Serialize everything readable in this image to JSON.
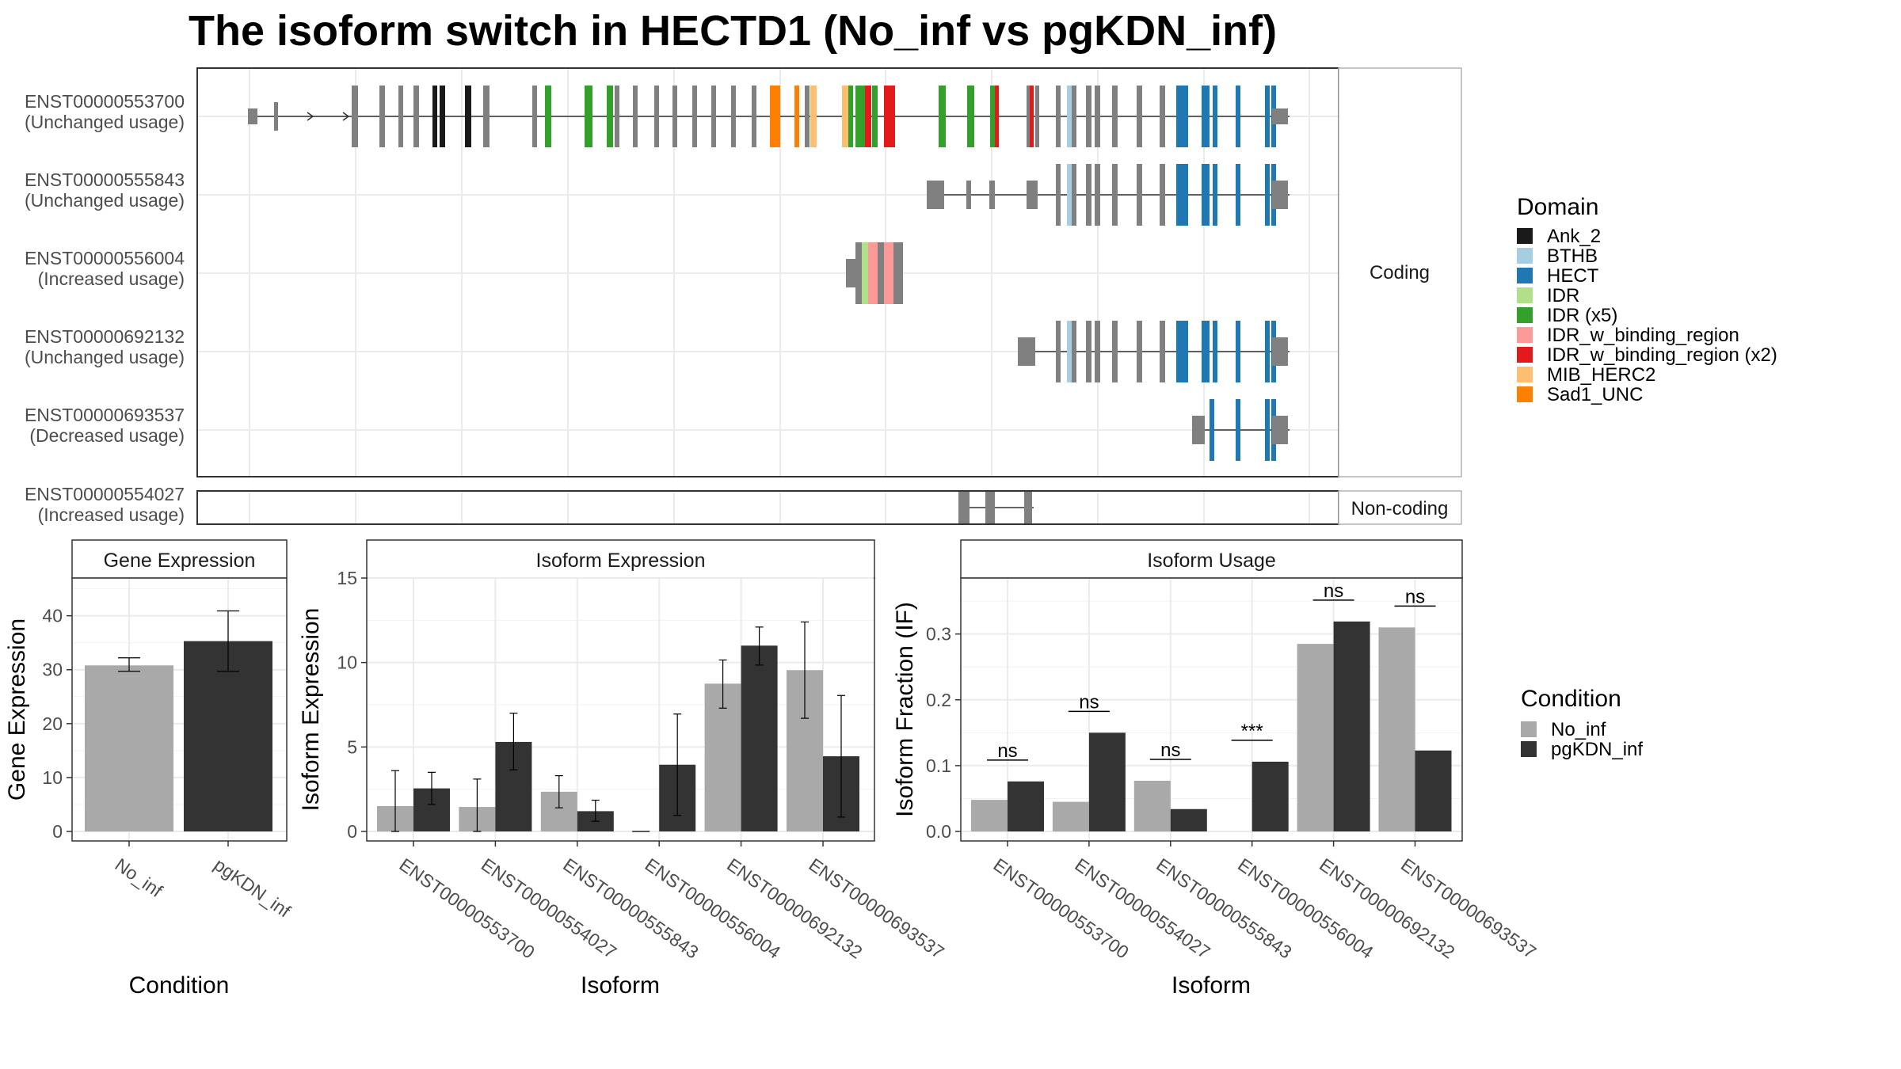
{
  "title": "The isoform switch in HECTD1 (No_inf vs pgKDN_inf)",
  "colors": {
    "Ank_2": "#1a1a1a",
    "BTHB": "#a6cee3",
    "HECT": "#1f78b4",
    "IDR": "#b2df8a",
    "IDR (x5)": "#33a02c",
    "IDR_w_binding_region": "#fb9a99",
    "IDR_w_binding_region (x2)": "#e31a1c",
    "MIB_HERC2": "#fdbf6f",
    "Sad1_UNC": "#ff7f00",
    "exon": "#808080",
    "No_inf": "#a9a9a9",
    "pgKDN_inf": "#333333"
  },
  "gene_structure": {
    "coding_strip": "Coding",
    "noncoding_strip": "Non-coding",
    "transcripts": [
      {
        "id": "ENST00000553700",
        "usage": "(Unchanged usage)"
      },
      {
        "id": "ENST00000555843",
        "usage": "(Unchanged usage)"
      },
      {
        "id": "ENST00000556004",
        "usage": "(Increased usage)"
      },
      {
        "id": "ENST00000692132",
        "usage": "(Unchanged usage)"
      },
      {
        "id": "ENST00000693537",
        "usage": "(Decreased usage)"
      },
      {
        "id": "ENST00000554027",
        "usage": "(Increased usage)"
      }
    ]
  },
  "domain_legend": {
    "title": "Domain",
    "items": [
      "Ank_2",
      "BTHB",
      "HECT",
      "IDR",
      "IDR (x5)",
      "IDR_w_binding_region",
      "IDR_w_binding_region (x2)",
      "MIB_HERC2",
      "Sad1_UNC"
    ]
  },
  "condition_legend": {
    "title": "Condition",
    "items": [
      "No_inf",
      "pgKDN_inf"
    ]
  },
  "chart_data": [
    {
      "type": "bar",
      "title": "Gene Expression",
      "xlabel": "Condition",
      "ylabel": "Gene Expression",
      "categories": [
        "No_inf",
        "pgKDN_inf"
      ],
      "values": [
        30.8,
        35.3
      ],
      "error_low": [
        29.7,
        29.7
      ],
      "error_high": [
        32.2,
        40.9
      ],
      "ylim": [
        0,
        47
      ],
      "yticks": [
        0,
        10,
        20,
        30,
        40
      ]
    },
    {
      "type": "bar",
      "title": "Isoform Expression",
      "xlabel": "Isoform",
      "ylabel": "Isoform Expression",
      "categories": [
        "ENST00000553700",
        "ENST00000554027",
        "ENST00000555843",
        "ENST00000556004",
        "ENST00000692132",
        "ENST00000693537"
      ],
      "series": [
        {
          "name": "No_inf",
          "values": [
            1.5,
            1.45,
            2.35,
            0.0,
            8.75,
            9.55
          ],
          "error_low": [
            0.0,
            0.0,
            1.4,
            0.0,
            7.3,
            6.7
          ],
          "error_high": [
            3.6,
            3.1,
            3.3,
            0.0,
            10.15,
            12.4
          ]
        },
        {
          "name": "pgKDN_inf",
          "values": [
            2.55,
            5.3,
            1.2,
            3.95,
            11.0,
            4.45
          ],
          "error_low": [
            1.6,
            3.65,
            0.6,
            0.95,
            9.85,
            0.85
          ],
          "error_high": [
            3.5,
            7.0,
            1.85,
            6.95,
            12.1,
            8.05
          ]
        }
      ],
      "ylim": [
        0,
        15
      ],
      "yticks": [
        0,
        5,
        10,
        15
      ]
    },
    {
      "type": "bar",
      "title": "Isoform Usage",
      "xlabel": "Isoform",
      "ylabel": "Isoform Fraction (IF)",
      "categories": [
        "ENST00000553700",
        "ENST00000554027",
        "ENST00000555843",
        "ENST00000556004",
        "ENST00000692132",
        "ENST00000693537"
      ],
      "series": [
        {
          "name": "No_inf",
          "values": [
            0.048,
            0.045,
            0.077,
            0.0,
            0.285,
            0.31
          ]
        },
        {
          "name": "pgKDN_inf",
          "values": [
            0.076,
            0.15,
            0.034,
            0.106,
            0.319,
            0.123
          ]
        }
      ],
      "significance": [
        "ns",
        "ns",
        "ns",
        "***",
        "ns",
        "ns"
      ],
      "ylim": [
        0,
        0.385
      ],
      "yticks": [
        0.0,
        0.1,
        0.2,
        0.3
      ],
      "ytick_labels": [
        "0.0",
        "0.1",
        "0.2",
        "0.3"
      ]
    }
  ]
}
